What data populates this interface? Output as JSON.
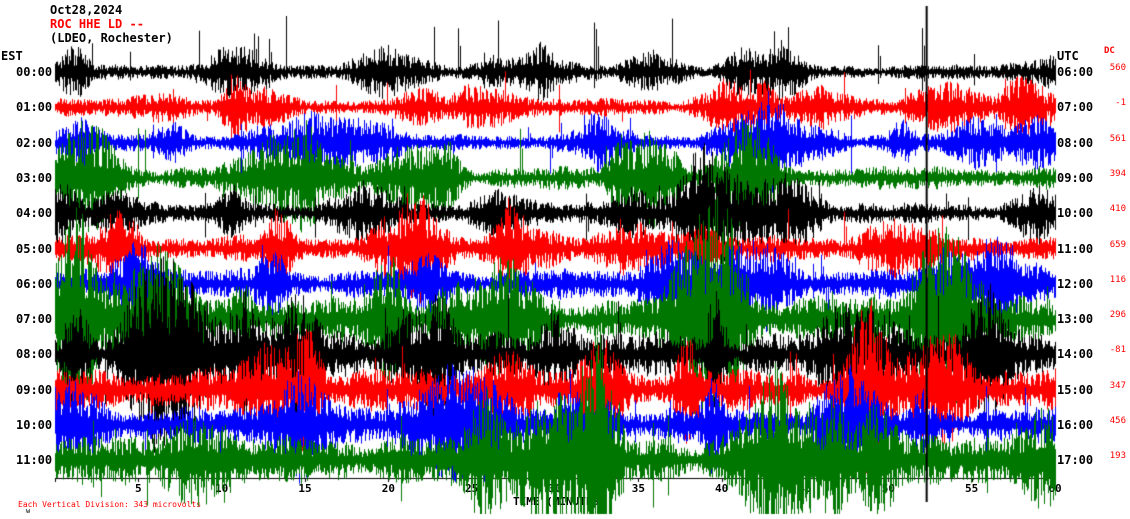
{
  "header": {
    "date": "Oct28,2024",
    "station": "ROC HHE LD --",
    "affiliation": "(LDEO, Rochester)"
  },
  "axes": {
    "left_label": "EST",
    "right_label": "UTC",
    "dc_label": "DC",
    "x_title": "TIME (MINUTES)"
  },
  "footer": {
    "scale_note": "Each Vertical Division: 343 microvolts",
    "corner_mark": "w"
  },
  "chart_data": {
    "type": "line",
    "title": "ROC HHE LD -- (LDEO, Rochester) helicorder Oct28,2024",
    "xlabel": "TIME (MINUTES)",
    "x_range_minutes": [
      0,
      60
    ],
    "x_ticks": [
      5,
      10,
      15,
      20,
      25,
      30,
      35,
      40,
      45,
      50,
      55,
      60
    ],
    "row_spacing_hours": 1,
    "colors_cycle": [
      "#000000",
      "#ff0000",
      "#0000ff",
      "#007700"
    ],
    "rows": [
      {
        "est": "00:00",
        "utc": "06:00",
        "dc": "560",
        "color": "#000000",
        "amp": 5,
        "spikes": 22,
        "spike_up": 58,
        "spike_dn": 16,
        "seed": 101
      },
      {
        "est": "01:00",
        "utc": "07:00",
        "dc": "-1",
        "color": "#ff0000",
        "amp": 6,
        "spikes": 16,
        "spike_up": 34,
        "spike_dn": 22,
        "seed": 202
      },
      {
        "est": "02:00",
        "utc": "08:00",
        "dc": "561",
        "color": "#0000ff",
        "amp": 6,
        "spikes": 14,
        "spike_up": 26,
        "spike_dn": 30,
        "seed": 303
      },
      {
        "est": "03:00",
        "utc": "09:00",
        "dc": "394",
        "color": "#007700",
        "amp": 8,
        "spikes": 14,
        "spike_up": 44,
        "spike_dn": 26,
        "seed": 404
      },
      {
        "est": "04:00",
        "utc": "10:00",
        "dc": "410",
        "color": "#000000",
        "amp": 7,
        "spikes": 12,
        "spike_up": 30,
        "spike_dn": 26,
        "seed": 505
      },
      {
        "est": "05:00",
        "utc": "11:00",
        "dc": "659",
        "color": "#ff0000",
        "amp": 9,
        "spikes": 14,
        "spike_up": 34,
        "spike_dn": 30,
        "seed": 606
      },
      {
        "est": "06:00",
        "utc": "12:00",
        "dc": "116",
        "color": "#0000ff",
        "amp": 10,
        "spikes": 16,
        "spike_up": 34,
        "spike_dn": 80,
        "seed": 707
      },
      {
        "est": "07:00",
        "utc": "13:00",
        "dc": "296",
        "color": "#007700",
        "amp": 15,
        "spikes": 18,
        "spike_up": 50,
        "spike_dn": 70,
        "seed": 808
      },
      {
        "est": "08:00",
        "utc": "14:00",
        "dc": "-81",
        "color": "#000000",
        "amp": 15,
        "spikes": 18,
        "spike_up": 60,
        "spike_dn": 60,
        "seed": 909
      },
      {
        "est": "09:00",
        "utc": "15:00",
        "dc": "347",
        "color": "#ff0000",
        "amp": 14,
        "spikes": 16,
        "spike_up": 40,
        "spike_dn": 40,
        "seed": 1010
      },
      {
        "est": "10:00",
        "utc": "16:00",
        "dc": "456",
        "color": "#0000ff",
        "amp": 12,
        "spikes": 16,
        "spike_up": 40,
        "spike_dn": 40,
        "seed": 1111
      },
      {
        "est": "11:00",
        "utc": "17:00",
        "dc": "193",
        "color": "#007700",
        "amp": 16,
        "spikes": 16,
        "spike_up": 40,
        "spike_dn": 44,
        "seed": 1212
      }
    ],
    "big_event": {
      "minute": 52.3,
      "color": "#000000",
      "width": 2
    }
  }
}
